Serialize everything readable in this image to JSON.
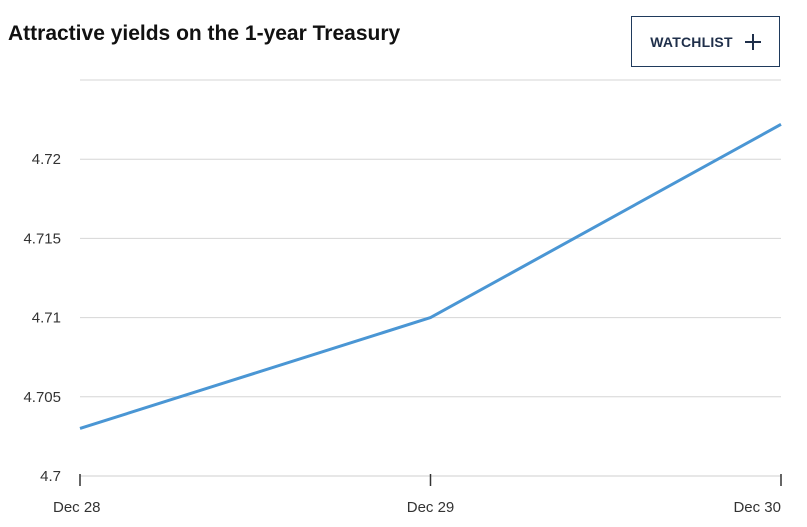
{
  "header": {
    "title": "Attractive yields on the 1-year Treasury",
    "watchlist_label": "WATCHLIST",
    "watchlist_icon": "plus-icon"
  },
  "chart_data": {
    "type": "line",
    "title": "Attractive yields on the 1-year Treasury",
    "xlabel": "",
    "ylabel": "",
    "categories": [
      "Dec 28",
      "Dec 29",
      "Dec 30"
    ],
    "series": [
      {
        "values": [
          4.703,
          4.71,
          4.7222
        ],
        "color": "#4a96d4"
      }
    ],
    "ylim": [
      4.7,
      4.725
    ],
    "yticks": [
      "4.7",
      "4.705",
      "4.71",
      "4.715",
      "4.72"
    ],
    "grid": true,
    "legend": "none"
  }
}
